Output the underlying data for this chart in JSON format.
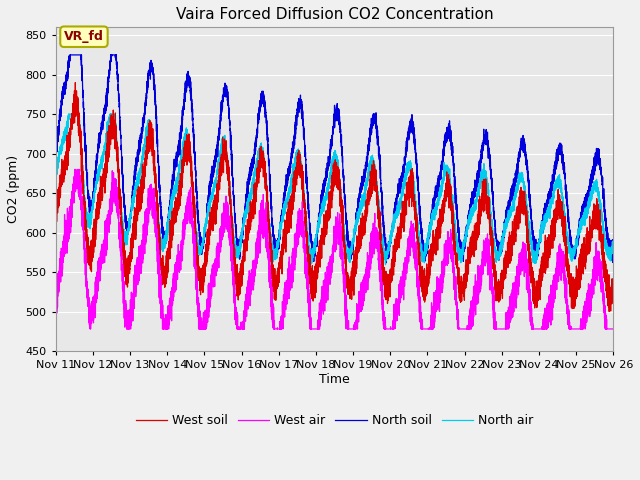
{
  "title": "Vaira Forced Diffusion CO2 Concentration",
  "xlabel": "Time",
  "ylabel": "CO2 (ppm)",
  "ylim": [
    450,
    860
  ],
  "yticks": [
    450,
    500,
    550,
    600,
    650,
    700,
    750,
    800,
    850
  ],
  "label_text": "VR_fd",
  "colors": {
    "west_soil": "#dd0000",
    "west_air": "#ff00ff",
    "north_soil": "#0000dd",
    "north_air": "#00ccee"
  },
  "legend_labels": [
    "West soil",
    "West air",
    "North soil",
    "North air"
  ],
  "bg_color": "#e8e8e8",
  "fig_color": "#f0f0f0"
}
